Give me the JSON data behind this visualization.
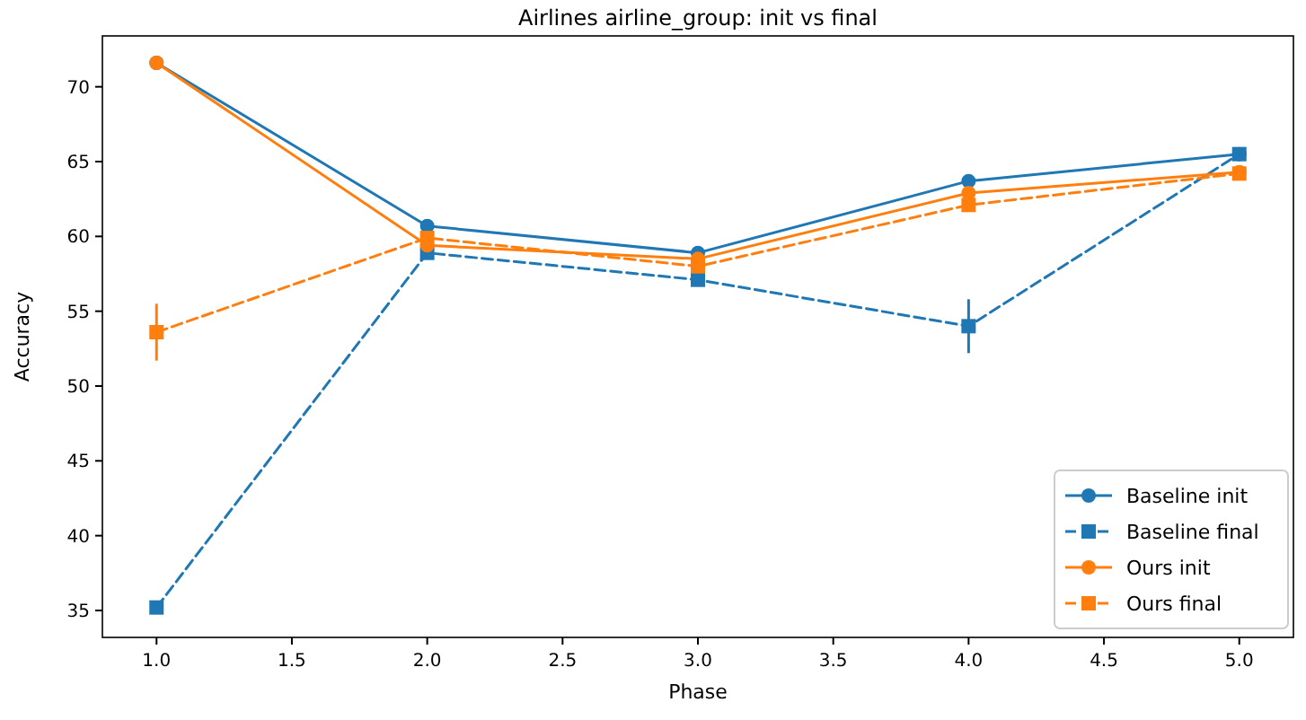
{
  "chart_data": {
    "type": "line",
    "title": "Airlines airline_group: init vs final",
    "xlabel": "Phase",
    "ylabel": "Accuracy",
    "x": [
      1,
      2,
      3,
      4,
      5
    ],
    "xlim": [
      0.8,
      5.2
    ],
    "xticks": [
      {
        "value": 1,
        "label": "1.0"
      },
      {
        "value": 1.5,
        "label": "1.5"
      },
      {
        "value": 2,
        "label": "2.0"
      },
      {
        "value": 2.5,
        "label": "2.5"
      },
      {
        "value": 3,
        "label": "3.0"
      },
      {
        "value": 3.5,
        "label": "3.5"
      },
      {
        "value": 4,
        "label": "4.0"
      },
      {
        "value": 4.5,
        "label": "4.5"
      },
      {
        "value": 5,
        "label": "5.0"
      }
    ],
    "ylim": [
      33.2,
      73.4
    ],
    "yticks": [
      35,
      40,
      45,
      50,
      55,
      60,
      65,
      70
    ],
    "legend": "bottom right",
    "grid": false,
    "series": [
      {
        "name": "Baseline init",
        "color": "#1f77b4",
        "marker": "circle",
        "line_style": "solid",
        "values": [
          71.6,
          60.7,
          58.9,
          63.7,
          65.5
        ]
      },
      {
        "name": "Baseline final",
        "color": "#1f77b4",
        "marker": "square",
        "line_style": "dashed",
        "values": [
          35.2,
          58.9,
          57.1,
          54.0,
          65.5
        ],
        "errors": [
          null,
          null,
          null,
          1.8,
          null
        ]
      },
      {
        "name": "Ours init",
        "color": "#ff7f0e",
        "marker": "circle",
        "line_style": "solid",
        "values": [
          71.6,
          59.4,
          58.5,
          62.9,
          64.3
        ]
      },
      {
        "name": "Ours final",
        "color": "#ff7f0e",
        "marker": "square",
        "line_style": "dashed",
        "values": [
          53.6,
          59.9,
          58.0,
          62.1,
          64.2
        ],
        "errors": [
          1.9,
          null,
          null,
          null,
          null
        ]
      }
    ]
  }
}
